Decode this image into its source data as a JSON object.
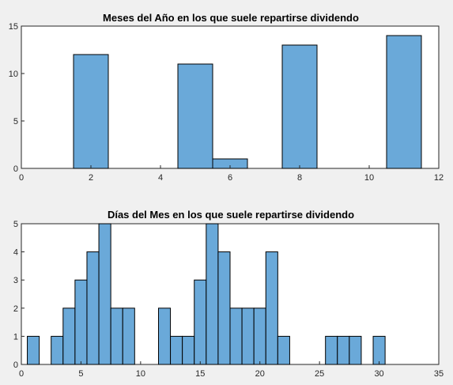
{
  "colors": {
    "figure_background": "#f0f0f0",
    "axes_background": "#ffffff",
    "bar_fill": "#6aa9d9",
    "bar_edge": "#000000"
  },
  "chart_data": [
    {
      "type": "bar",
      "title": "Meses del Año en los que suele repartirse dividendo",
      "xlabel": "",
      "ylabel": "",
      "xlim": [
        0,
        12
      ],
      "ylim": [
        0,
        15
      ],
      "xticks": [
        0,
        2,
        4,
        6,
        8,
        10,
        12
      ],
      "yticks": [
        0,
        5,
        10,
        15
      ],
      "bin_width": 1,
      "x": [
        2,
        5,
        6,
        8,
        11
      ],
      "values": [
        12,
        11,
        1,
        13,
        14
      ],
      "grid": false
    },
    {
      "type": "bar",
      "title": "Días del Mes en los que suele repartirse dividendo",
      "xlabel": "",
      "ylabel": "",
      "xlim": [
        0,
        35
      ],
      "ylim": [
        0,
        5
      ],
      "xticks": [
        0,
        5,
        10,
        15,
        20,
        25,
        30,
        35
      ],
      "yticks": [
        0,
        1,
        2,
        3,
        4,
        5
      ],
      "bin_width": 1,
      "x": [
        1,
        3,
        4,
        5,
        6,
        7,
        8,
        9,
        12,
        13,
        14,
        15,
        16,
        17,
        18,
        19,
        20,
        21,
        22,
        26,
        27,
        28,
        30
      ],
      "values": [
        1,
        1,
        2,
        3,
        4,
        5,
        2,
        2,
        2,
        1,
        1,
        3,
        5,
        4,
        2,
        2,
        2,
        4,
        1,
        1,
        1,
        1,
        1
      ],
      "grid": false
    }
  ]
}
